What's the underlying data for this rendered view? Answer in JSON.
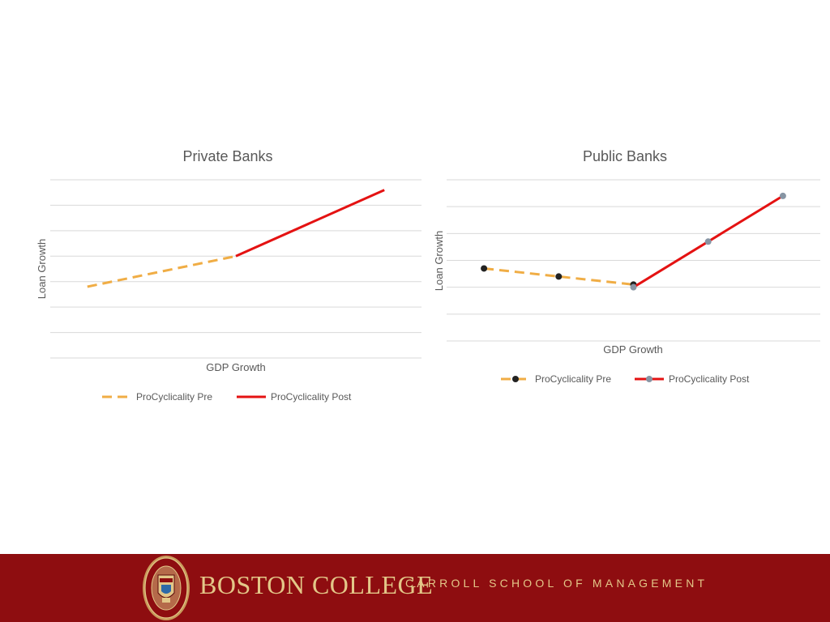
{
  "chart_data": [
    {
      "type": "line",
      "title": "Private Banks",
      "xlabel": "GDP Growth",
      "ylabel": "Loan Growth",
      "legend_position": "bottom",
      "grid": true,
      "xlim": [
        0,
        10
      ],
      "ylim": [
        0,
        7
      ],
      "series": [
        {
          "name": "ProCyclicality Pre",
          "style": "dashed",
          "color": "#f0ad45",
          "x": [
            1,
            5
          ],
          "y": [
            2.8,
            4.0
          ]
        },
        {
          "name": "ProCyclicality Post",
          "style": "solid",
          "color": "#e41212",
          "x": [
            5,
            9
          ],
          "y": [
            4.0,
            6.6
          ]
        }
      ]
    },
    {
      "type": "line",
      "title": "Public Banks",
      "xlabel": "GDP Growth",
      "ylabel": "Loan Growth",
      "legend_position": "bottom",
      "grid": true,
      "xlim": [
        0,
        10
      ],
      "ylim": [
        0,
        6
      ],
      "series": [
        {
          "name": "ProCyclicality Pre",
          "style": "dashed",
          "color": "#f0ad45",
          "marker_color": "#222222",
          "x": [
            1,
            3,
            5
          ],
          "y": [
            2.7,
            2.4,
            2.1
          ]
        },
        {
          "name": "ProCyclicality Post",
          "style": "solid",
          "color": "#e41212",
          "marker_color": "#8795a4",
          "x": [
            5,
            7,
            9
          ],
          "y": [
            2.0,
            3.7,
            5.4
          ]
        }
      ]
    }
  ],
  "footer": {
    "institution": "BOSTON COLLEGE",
    "school": "CARROLL SCHOOL OF MANAGEMENT",
    "background": "#8e0d10",
    "text_color": "#e3c788"
  }
}
